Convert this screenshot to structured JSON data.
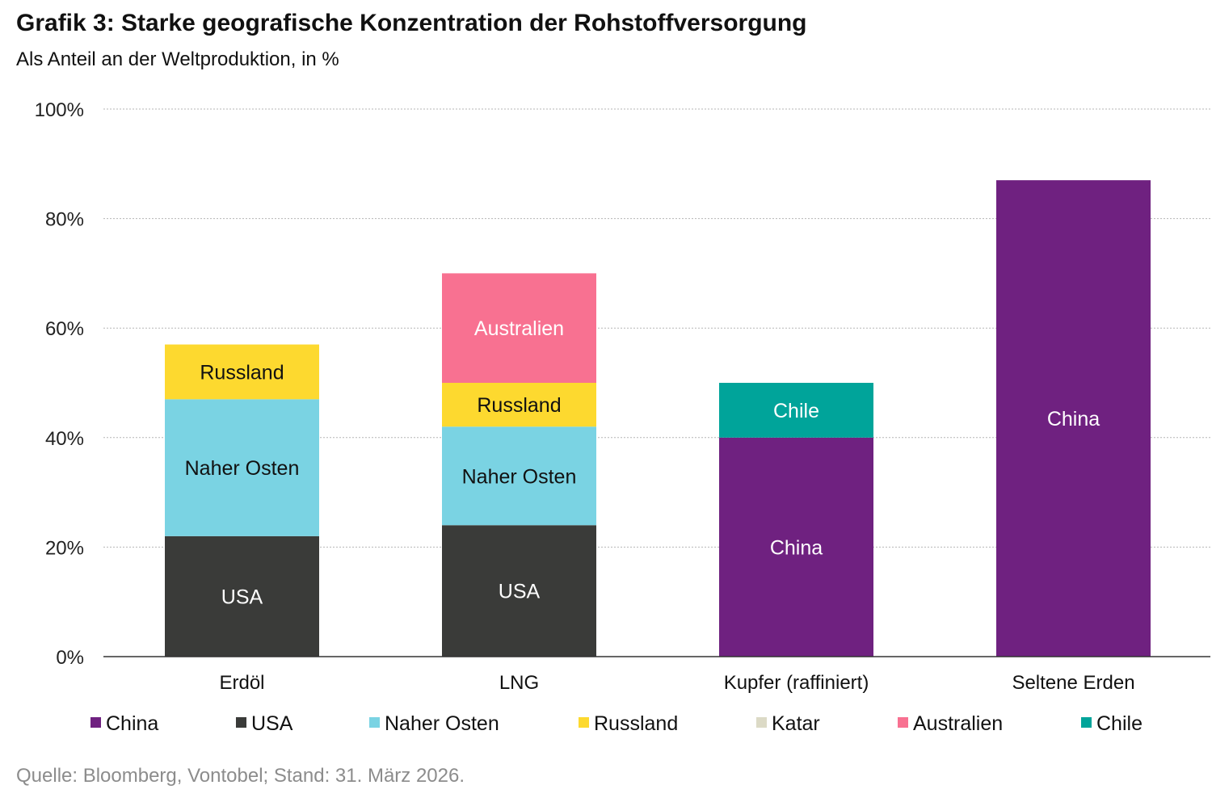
{
  "title": "Grafik 3: Starke geografische Konzentration der Rohstoffversorgung",
  "subtitle": "Als Anteil an der Weltproduktion, in %",
  "source": "Quelle: Bloomberg, Vontobel; Stand: 31. März 2026.",
  "colors": {
    "China": "#6f2180",
    "USA": "#3a3b39",
    "Naher Osten": "#7ad3e3",
    "Russland": "#fdd92f",
    "Katar": "#dcdac6",
    "Australien": "#f87191",
    "Chile": "#00a49a"
  },
  "chart_data": {
    "type": "bar",
    "stacked": true,
    "categories": [
      "Erdöl",
      "LNG",
      "Kupfer (raffiniert)",
      "Seltene Erden"
    ],
    "series": [
      {
        "name": "China",
        "values": [
          0,
          0,
          40,
          87
        ]
      },
      {
        "name": "USA",
        "values": [
          22,
          24,
          0,
          0
        ]
      },
      {
        "name": "Naher Osten",
        "values": [
          25,
          18,
          0,
          0
        ]
      },
      {
        "name": "Russland",
        "values": [
          10,
          8,
          0,
          0
        ]
      },
      {
        "name": "Katar",
        "values": [
          0,
          0,
          0,
          0
        ]
      },
      {
        "name": "Australien",
        "values": [
          0,
          20,
          0,
          0
        ]
      },
      {
        "name": "Chile",
        "values": [
          0,
          0,
          10,
          0
        ]
      }
    ],
    "segment_labels": [
      [
        "USA",
        "Naher Osten",
        "Russland"
      ],
      [
        "USA",
        "Naher Osten",
        "Russland",
        "Australien"
      ],
      [
        "China",
        "Chile"
      ],
      [
        "China"
      ]
    ],
    "ylim": [
      0,
      100
    ],
    "yticks": [
      0,
      20,
      40,
      60,
      80,
      100
    ],
    "ytick_labels": [
      "0%",
      "20%",
      "40%",
      "60%",
      "80%",
      "100%"
    ],
    "grid": true,
    "legend": "bottom",
    "legend_entries": [
      "China",
      "USA",
      "Naher Osten",
      "Russland",
      "Katar",
      "Australien",
      "Chile"
    ]
  }
}
